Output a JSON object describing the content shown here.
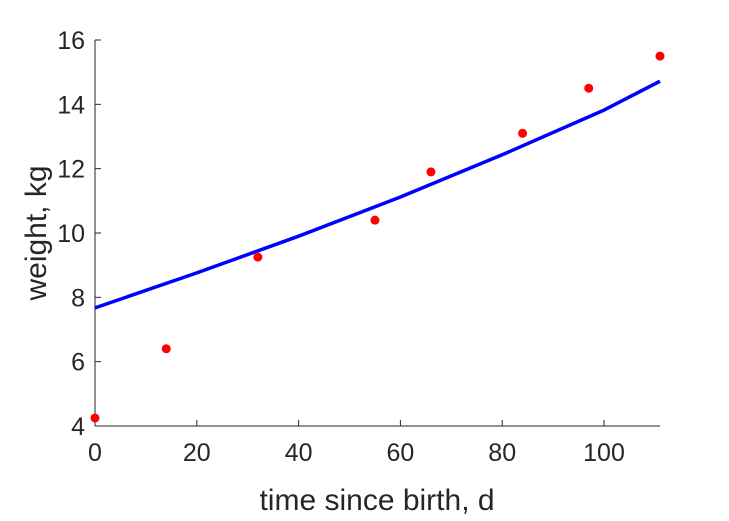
{
  "chart_data": {
    "type": "scatter",
    "title": "",
    "xlabel": "time since birth, d",
    "ylabel": "weight, kg",
    "xlim": [
      0,
      111
    ],
    "ylim": [
      4,
      16
    ],
    "xticks": [
      0,
      20,
      40,
      60,
      80,
      100
    ],
    "yticks": [
      4,
      6,
      8,
      10,
      12,
      14,
      16
    ],
    "xtick_labels": [
      "0",
      "20",
      "40",
      "60",
      "80",
      "100"
    ],
    "ytick_labels": [
      "4",
      "6",
      "8",
      "10",
      "12",
      "14",
      "16"
    ],
    "grid": false,
    "colors": {
      "points": "#ff0000",
      "fit": "#0000ff",
      "axis": "#262626"
    },
    "series": [
      {
        "kind": "points",
        "x": [
          0,
          14,
          32,
          55,
          66,
          84,
          97,
          111
        ],
        "y": [
          4.25,
          6.4,
          9.25,
          10.4,
          11.9,
          13.1,
          14.5,
          15.5
        ]
      },
      {
        "kind": "fit-line",
        "x": [
          0,
          20,
          40,
          60,
          80,
          100,
          111
        ],
        "y": [
          7.67,
          8.76,
          9.9,
          11.12,
          12.43,
          13.82,
          14.72
        ]
      }
    ]
  }
}
